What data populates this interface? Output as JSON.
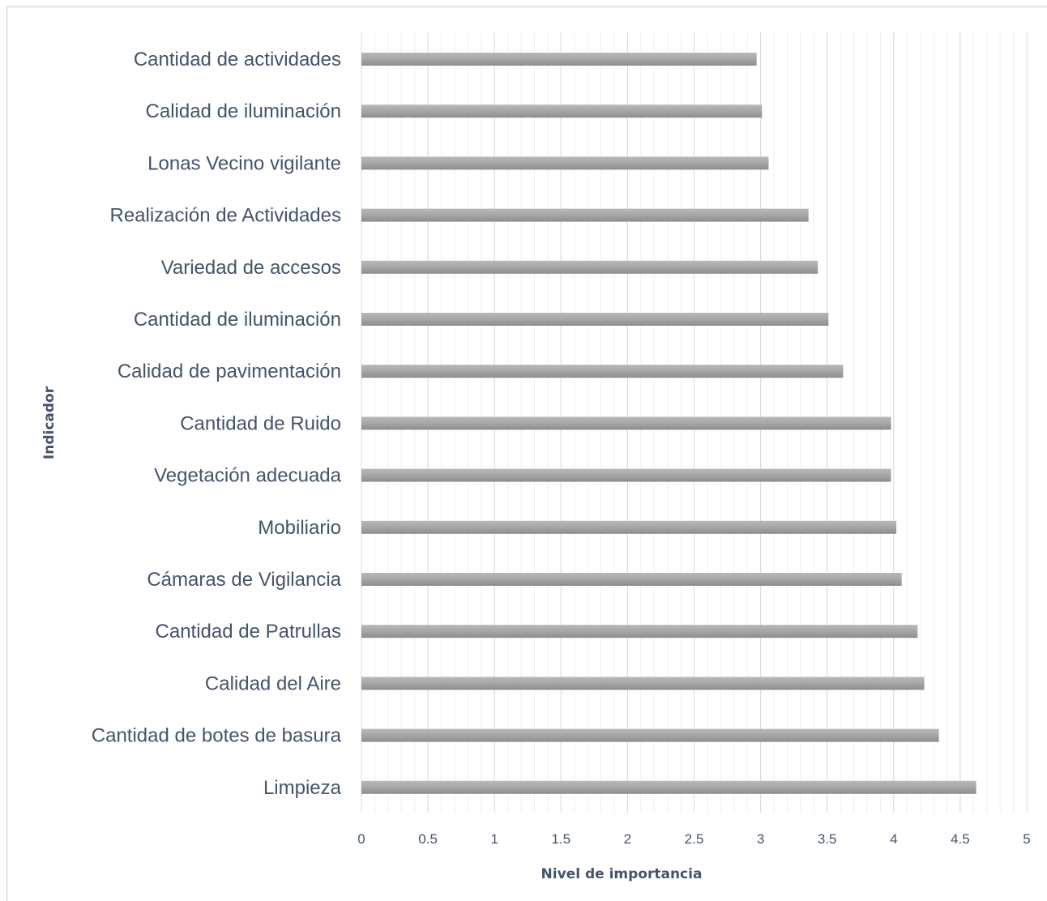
{
  "chart_data": {
    "type": "bar",
    "orientation": "horizontal",
    "categories": [
      "Cantidad de actividades",
      "Calidad de iluminación",
      "Lonas Vecino vigilante",
      "Realización de Actividades",
      "Variedad de accesos",
      "Cantidad de iluminación",
      "Calidad de pavimentación",
      "Cantidad de Ruido",
      "Vegetación adecuada",
      "Mobiliario",
      "Cámaras de Vigilancia",
      "Cantidad de Patrullas",
      "Calidad del Aire",
      "Cantidad de botes de basura",
      "Limpieza"
    ],
    "values": [
      2.97,
      3.01,
      3.06,
      3.36,
      3.43,
      3.51,
      3.62,
      3.98,
      3.98,
      4.02,
      4.06,
      4.18,
      4.23,
      4.34,
      4.62
    ],
    "xlabel": "Nivel de importancia",
    "ylabel": "Indicador",
    "xlim": [
      0,
      5
    ],
    "x_ticks": [
      "0",
      "0.5",
      "1",
      "1.5",
      "2",
      "2.5",
      "3",
      "3.5",
      "4",
      "4.5",
      "5"
    ],
    "major_step": 0.5,
    "minor_step": 0.1,
    "grid": "vertical major and minor",
    "legend": "none",
    "bar_color": "#a6a6a6",
    "border_color": "#d9d9d9"
  }
}
